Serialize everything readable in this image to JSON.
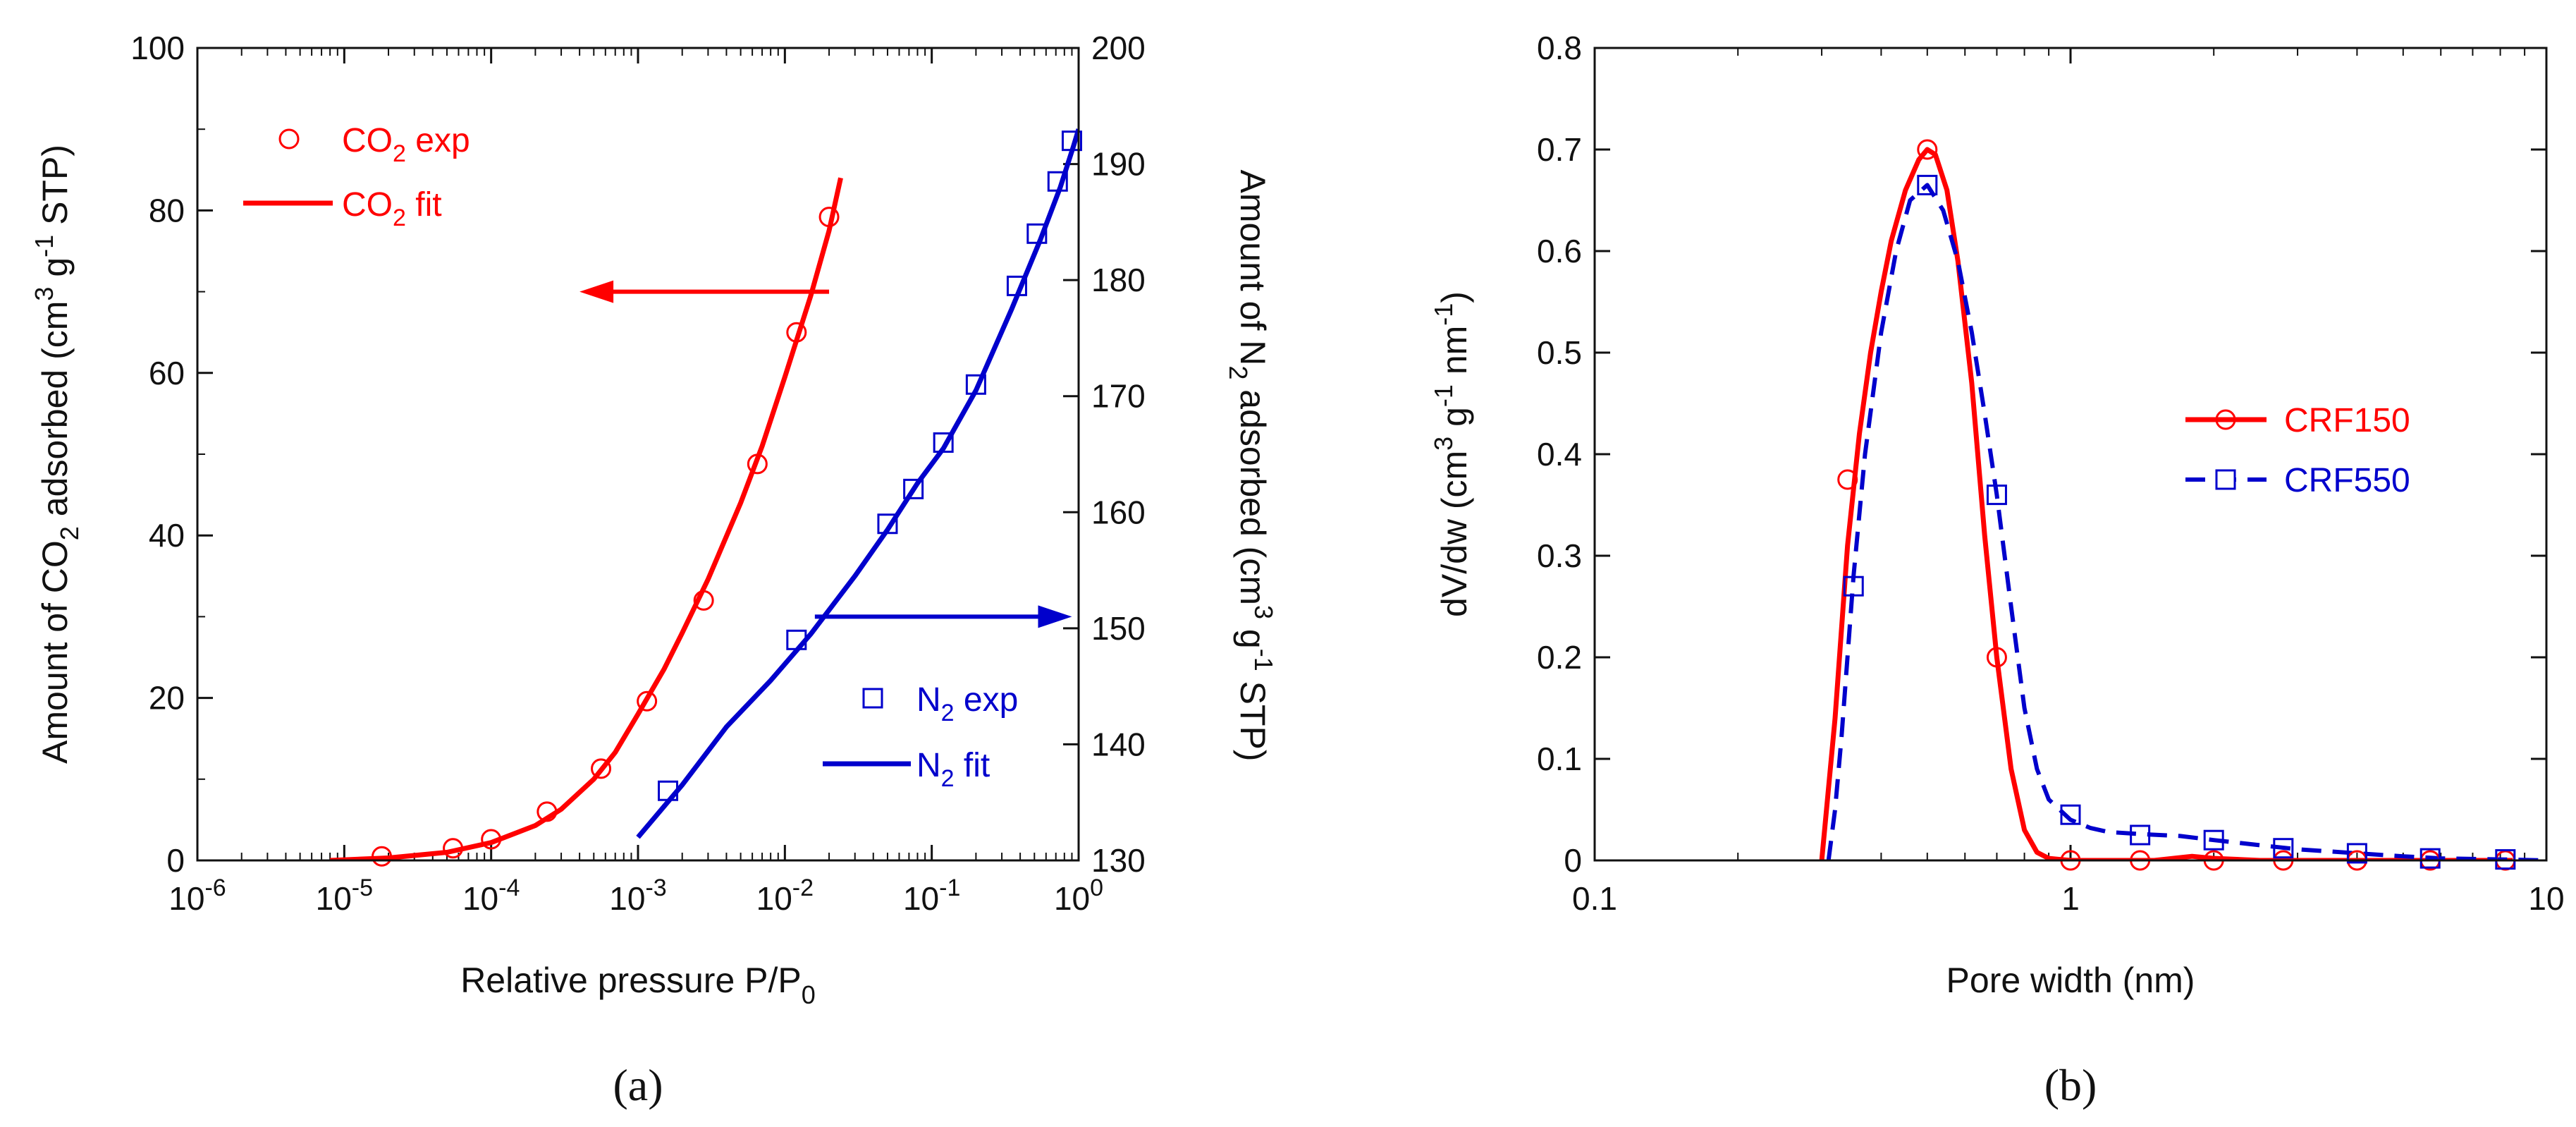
{
  "chart_data": [
    {
      "panel_label": "(a)",
      "type": "scatter",
      "xscale": "log",
      "xlim": [
        1e-06,
        1
      ],
      "xticks": [
        {
          "value": 1e-06,
          "base": "10",
          "exp": "-6"
        },
        {
          "value": 1e-05,
          "base": "10",
          "exp": "-5"
        },
        {
          "value": 0.0001,
          "base": "10",
          "exp": "-4"
        },
        {
          "value": 0.001,
          "base": "10",
          "exp": "-3"
        },
        {
          "value": 0.01,
          "base": "10",
          "exp": "-2"
        },
        {
          "value": 0.1,
          "base": "10",
          "exp": "-1"
        },
        {
          "value": 1,
          "base": "10",
          "exp": "0"
        }
      ],
      "xlabel": {
        "main": "Relative pressure P/P",
        "sub": "0"
      },
      "ylabel_left": {
        "t1": "Amount of CO",
        "s1": "2",
        "t2": " adsorbed (cm",
        "p1": "3",
        "t3": " g",
        "p2": "-1",
        "t4": " STP)"
      },
      "ylabel_right": {
        "t1": "Amount of N",
        "s1": "2",
        "t2": " adsorbed (cm",
        "p1": "3",
        "t3": " g",
        "p2": "-1",
        "t4": " STP)"
      },
      "ylim_left": [
        0,
        100
      ],
      "yticks_left": [
        0,
        20,
        40,
        60,
        80,
        100
      ],
      "ylim_right": [
        130,
        200
      ],
      "yticks_right": [
        130,
        140,
        150,
        160,
        170,
        180,
        190,
        200
      ],
      "legend_placement": "top-left and bottom-right",
      "series": [
        {
          "name": "CO₂ exp",
          "legend_main": "CO",
          "legend_sub": "2",
          "legend_tail": " exp",
          "axis": "left",
          "color": "#ff0000",
          "marker": "circle",
          "style": "markers",
          "x": [
            1.8e-05,
            5.5e-05,
            0.0001,
            0.00024,
            0.00056,
            0.00115,
            0.0028,
            0.0065,
            0.012,
            0.02
          ],
          "y": [
            0.5,
            1.5,
            2.6,
            6,
            11.3,
            19.6,
            32,
            48.8,
            65,
            79.2
          ]
        },
        {
          "name": "CO₂ fit",
          "legend_main": "CO",
          "legend_sub": "2",
          "legend_tail": " fit",
          "axis": "left",
          "color": "#ff0000",
          "style": "line",
          "x": [
            8e-06,
            2e-05,
            5e-05,
            0.0001,
            0.0002,
            0.0003,
            0.0005,
            0.0007,
            0.001,
            0.0015,
            0.002,
            0.003,
            0.005,
            0.007,
            0.01,
            0.015,
            0.02,
            0.024
          ],
          "y": [
            0,
            0.3,
            1,
            2.2,
            4.3,
            6.3,
            10,
            13.3,
            18,
            23.5,
            28,
            34.6,
            44,
            51,
            59.5,
            69.5,
            77.5,
            84
          ]
        },
        {
          "name": "N₂ exp",
          "legend_main": "N",
          "legend_sub": "2",
          "legend_tail": " exp",
          "axis": "right",
          "color": "#0000cc",
          "marker": "square",
          "style": "markers",
          "x": [
            0.0016,
            0.012,
            0.05,
            0.075,
            0.12,
            0.2,
            0.38,
            0.52,
            0.72,
            0.9
          ],
          "y": [
            136,
            149,
            159,
            162,
            166,
            171,
            179.5,
            184,
            188.5,
            192
          ]
        },
        {
          "name": "N₂ fit",
          "legend_main": "N",
          "legend_sub": "2",
          "legend_tail": " fit",
          "axis": "right",
          "color": "#0000cc",
          "style": "line",
          "x": [
            0.001,
            0.002,
            0.004,
            0.008,
            0.015,
            0.03,
            0.05,
            0.08,
            0.12,
            0.2,
            0.35,
            0.55,
            0.75,
            0.92,
            1.0
          ],
          "y": [
            132,
            136.5,
            141.5,
            145.5,
            149.5,
            154.5,
            158.5,
            162.5,
            165.5,
            170.5,
            177.5,
            183.5,
            188,
            191.5,
            193
          ]
        }
      ],
      "annotations": [
        {
          "type": "arrow",
          "color": "#ff0000",
          "direction": "left",
          "from": [
            0.02,
            70
          ],
          "to": [
            0.0004,
            70
          ],
          "axis": "left"
        },
        {
          "type": "arrow",
          "color": "#0000cc",
          "direction": "right",
          "from": [
            0.016,
            151
          ],
          "to": [
            0.9,
            151
          ],
          "axis": "right"
        }
      ]
    },
    {
      "panel_label": "(b)",
      "type": "line",
      "xscale": "log",
      "xlim": [
        0.1,
        10
      ],
      "xticks": [
        {
          "value": 0.1,
          "label": "0.1"
        },
        {
          "value": 1,
          "label": "1"
        },
        {
          "value": 10,
          "label": "10"
        }
      ],
      "xlabel": "Pore width (nm)",
      "ylabel": {
        "t1": "dV/dw (cm",
        "p1": "3",
        "t2": " g",
        "p2": "-1",
        "t3": " nm",
        "p3": "-1",
        "t4": ")"
      },
      "ylim": [
        0,
        0.8
      ],
      "yticks": [
        0,
        0.1,
        0.2,
        0.3,
        0.4,
        0.5,
        0.6,
        0.7,
        0.8
      ],
      "legend_placement": "right",
      "series": [
        {
          "name": "CRF150",
          "color": "#ff0000",
          "marker": "circle",
          "dash": "solid",
          "x": [
            0.3,
            0.32,
            0.34,
            0.36,
            0.38,
            0.4,
            0.42,
            0.45,
            0.48,
            0.5,
            0.52,
            0.55,
            0.58,
            0.62,
            0.66,
            0.7,
            0.75,
            0.8,
            0.85,
            0.9,
            1.0,
            1.2,
            1.5,
            1.8,
            2.0,
            2.5,
            3,
            4,
            6,
            8.5
          ],
          "y": [
            0,
            0.14,
            0.31,
            0.42,
            0.5,
            0.56,
            0.61,
            0.66,
            0.69,
            0.7,
            0.695,
            0.66,
            0.59,
            0.47,
            0.32,
            0.2,
            0.09,
            0.03,
            0.008,
            0.002,
            0,
            0,
            0,
            0.004,
            0.002,
            0,
            0,
            0,
            0,
            0
          ],
          "marker_x": [
            0.34,
            0.5,
            0.7,
            1.0,
            1.4,
            2.0,
            2.8,
            4.0,
            5.7,
            8.2
          ],
          "marker_y": [
            0.375,
            0.7,
            0.2,
            0,
            0,
            0,
            0,
            0,
            0,
            0
          ]
        },
        {
          "name": "CRF550",
          "color": "#0000cc",
          "marker": "square",
          "dash": "dashed",
          "x": [
            0.31,
            0.32,
            0.33,
            0.35,
            0.37,
            0.4,
            0.43,
            0.46,
            0.5,
            0.54,
            0.58,
            0.62,
            0.66,
            0.7,
            0.75,
            0.8,
            0.85,
            0.9,
            1.0,
            1.1,
            1.2,
            1.4,
            1.7,
            2.0,
            2.5,
            3,
            4,
            5,
            6,
            8,
            10
          ],
          "y": [
            0,
            0.05,
            0.12,
            0.28,
            0.4,
            0.52,
            0.6,
            0.65,
            0.665,
            0.64,
            0.59,
            0.52,
            0.44,
            0.36,
            0.25,
            0.15,
            0.09,
            0.06,
            0.04,
            0.032,
            0.028,
            0.026,
            0.024,
            0.02,
            0.015,
            0.011,
            0.007,
            0.004,
            0.002,
            0.001,
            0
          ],
          "marker_x": [
            0.35,
            0.5,
            0.7,
            1.0,
            1.4,
            2.0,
            2.8,
            4.0,
            5.7,
            8.2
          ],
          "marker_y": [
            0.27,
            0.665,
            0.36,
            0.045,
            0.025,
            0.02,
            0.012,
            0.007,
            0.002,
            0.001
          ]
        }
      ]
    }
  ]
}
